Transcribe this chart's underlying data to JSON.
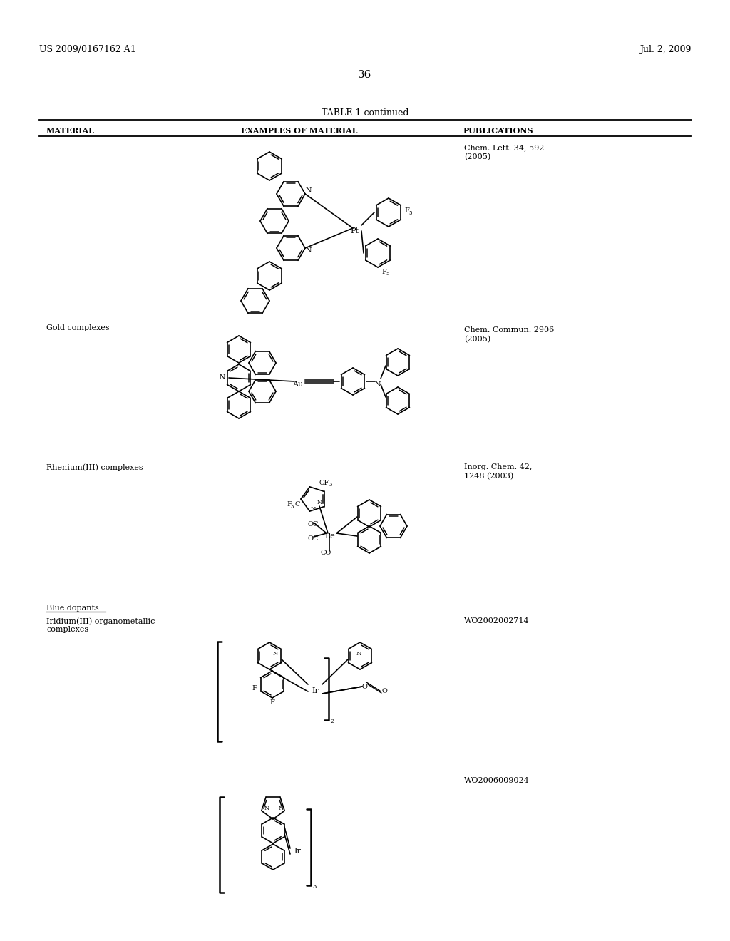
{
  "page_number": "36",
  "top_left_text": "US 2009/0167162 A1",
  "top_right_text": "Jul. 2, 2009",
  "table_title": "TABLE 1-continued",
  "col1_header": "MATERIAL",
  "col2_header": "EXAMPLES OF MATERIAL",
  "col3_header": "PUBLICATIONS",
  "pub1": "Chem. Lett. 34, 592\n(2005)",
  "pub2": "Chem. Commun. 2906\n(2005)",
  "pub3": "Inorg. Chem. 42,\n1248 (2003)",
  "pub4": "WO2002002714",
  "pub5": "WO2006009024",
  "mat2": "Gold complexes",
  "mat3": "Rhenium(III) complexes",
  "mat4_header": "Blue dopants",
  "mat4": "Iridium(III) organometallic\ncomplexes",
  "background_color": "#ffffff"
}
